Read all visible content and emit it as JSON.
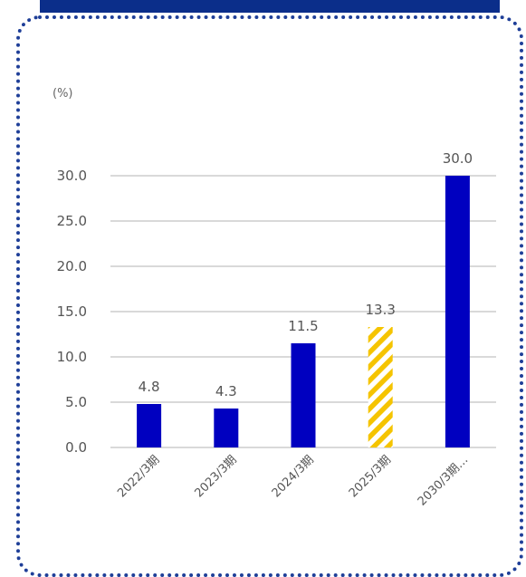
{
  "colors": {
    "bar": "#0000C0",
    "forecast_stripe": "#F5C400",
    "grid": "#D9D9D9",
    "title_bar": "#0B2E8A",
    "frame": "#1F3F98"
  },
  "chart_data": {
    "type": "bar",
    "unit_label": "(%)",
    "categories": [
      "2022/3期",
      "2023/3期",
      "2024/3期",
      "2025/3期",
      "2030/3期…"
    ],
    "values": [
      4.8,
      4.3,
      11.5,
      13.3,
      30.0
    ],
    "value_labels": [
      "4.8",
      "4.3",
      "11.5",
      "13.3",
      "30.0"
    ],
    "forecast": [
      false,
      false,
      false,
      true,
      false
    ],
    "ylim": [
      0,
      30
    ],
    "yticks": [
      0,
      5,
      10,
      15,
      20,
      25,
      30
    ],
    "ytick_labels": [
      "0.0",
      "5.0",
      "10.0",
      "15.0",
      "20.0",
      "25.0",
      "30.0"
    ],
    "grid": true
  }
}
